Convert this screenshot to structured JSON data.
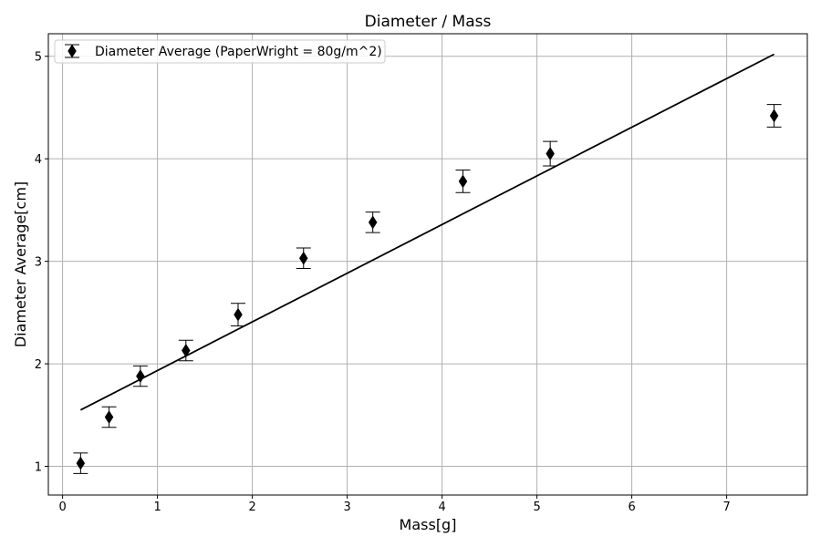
{
  "chart_data": {
    "type": "scatter",
    "title": "Diameter / Mass",
    "xlabel": "Mass[g]",
    "ylabel": "Diameter Average[cm]",
    "xlim": [
      -0.15,
      7.85
    ],
    "ylim": [
      0.72,
      5.22
    ],
    "xticks": [
      0,
      1,
      2,
      3,
      4,
      5,
      6,
      7
    ],
    "yticks": [
      1,
      2,
      3,
      4,
      5
    ],
    "grid": true,
    "legend": {
      "placement": "top-left",
      "entries": [
        "Diameter Average (PaperWright = 80g/m^2)"
      ]
    },
    "series": [
      {
        "name": "Diameter Average (PaperWright = 80g/m^2)",
        "marker": "diamond",
        "color": "#000000",
        "x": [
          0.19,
          0.49,
          0.82,
          1.3,
          1.85,
          2.54,
          3.27,
          4.22,
          5.14,
          7.5
        ],
        "y": [
          1.03,
          1.48,
          1.88,
          2.13,
          2.48,
          3.03,
          3.38,
          3.78,
          4.05,
          4.42
        ],
        "yerr": [
          0.1,
          0.1,
          0.1,
          0.1,
          0.11,
          0.1,
          0.1,
          0.11,
          0.12,
          0.11
        ]
      }
    ],
    "fit_line": {
      "x": [
        0.19,
        7.5
      ],
      "y": [
        1.55,
        5.02
      ],
      "color": "#000000"
    }
  }
}
